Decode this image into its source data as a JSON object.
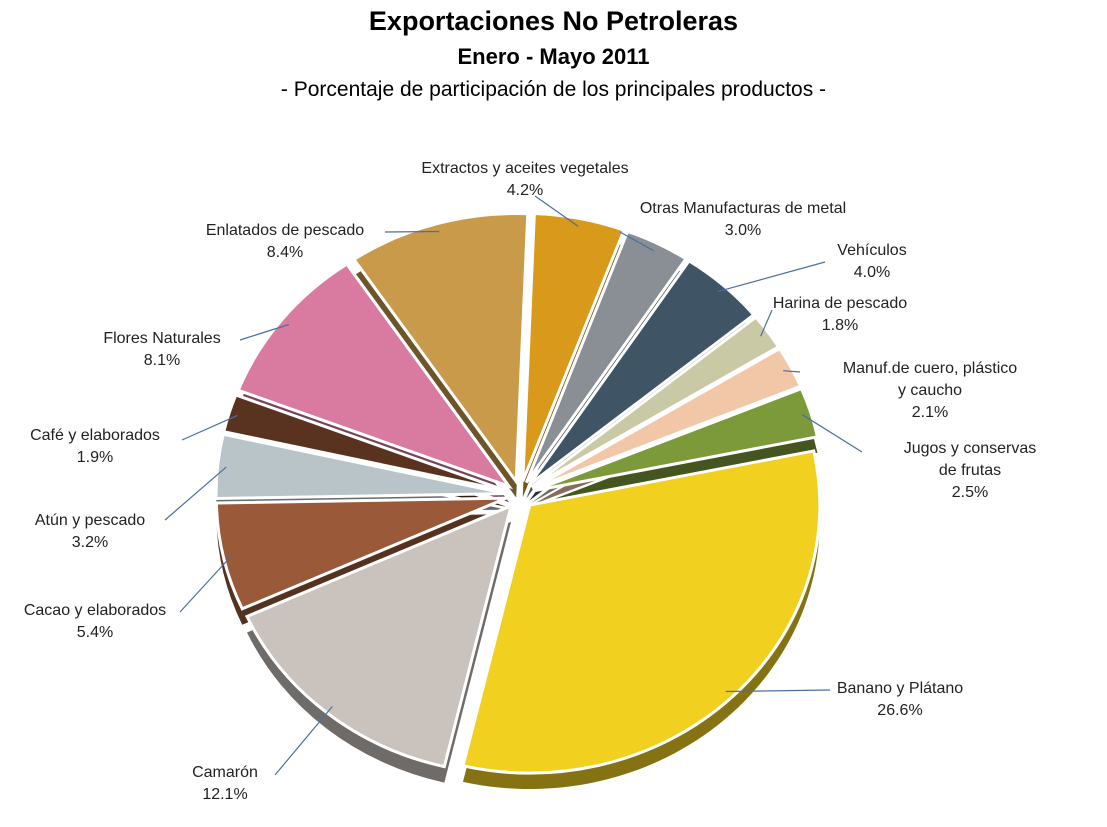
{
  "chart_data": {
    "type": "pie",
    "title": "Exportaciones No Petroleras",
    "subtitle": "Enero - Mayo  2011",
    "caption": "- Porcentaje de participación de los principales productos -",
    "categories": [
      "Extractos y aceites vegetales",
      "Otras Manufacturas de metal",
      "Vehículos",
      "Harina de pescado",
      "Manuf.de cuero, plástico y caucho",
      "Jugos y conservas de frutas",
      "Banano y Plátano",
      "Camarón",
      "Cacao y elaborados",
      "Atún y pescado",
      "Café y elaborados",
      "Flores Naturales",
      "Enlatados de pescado"
    ],
    "values": [
      4.2,
      3.0,
      4.0,
      1.8,
      2.1,
      2.5,
      26.6,
      12.1,
      5.4,
      3.2,
      1.9,
      8.1,
      8.4
    ],
    "value_labels": [
      "4.2%",
      "3.0%",
      "4.0%",
      "1.8%",
      "2.1%",
      "2.5%",
      "26.6%",
      "12.1%",
      "5.4%",
      "3.2%",
      "1.9%",
      "8.1%",
      "8.4%"
    ],
    "colors": [
      "#d99a1c",
      "#8a8f96",
      "#3f5566",
      "#c9c9a6",
      "#f2c7a8",
      "#7c9a3a",
      "#f2d020",
      "#c9c2bd",
      "#9a5a3a",
      "#b8c4c8",
      "#5a3320",
      "#d97aa0",
      "#c89a4a"
    ]
  }
}
